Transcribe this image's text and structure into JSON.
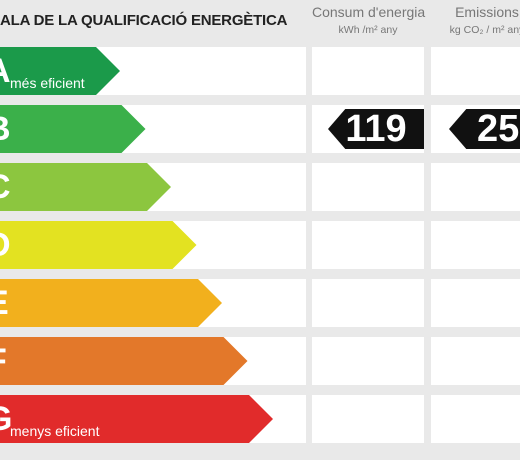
{
  "header": {
    "title": "ALA DE LA QUALIFICACIÓ ENERGÈTICA",
    "consumption": {
      "title": "Consum d'energia",
      "unit": "kWh /m² any"
    },
    "emissions": {
      "title": "Emissions",
      "unit": "kg CO₂ / m² any"
    }
  },
  "scale": [
    {
      "letter": "A",
      "caption": "més eficient",
      "color": "#1b9a4a",
      "level": 1
    },
    {
      "letter": "B",
      "caption": "",
      "color": "#3bb04a",
      "level": 2
    },
    {
      "letter": "C",
      "caption": "",
      "color": "#8cc63f",
      "level": 3
    },
    {
      "letter": "D",
      "caption": "",
      "color": "#e3e221",
      "level": 4
    },
    {
      "letter": "E",
      "caption": "",
      "color": "#f2b01d",
      "level": 5
    },
    {
      "letter": "F",
      "caption": "",
      "color": "#e3782a",
      "level": 6
    },
    {
      "letter": "G",
      "caption": "menys eficient",
      "color": "#e12b2b",
      "level": 7
    }
  ],
  "rating": {
    "consumption_value": "119",
    "emissions_value": "25",
    "letter": "B"
  }
}
